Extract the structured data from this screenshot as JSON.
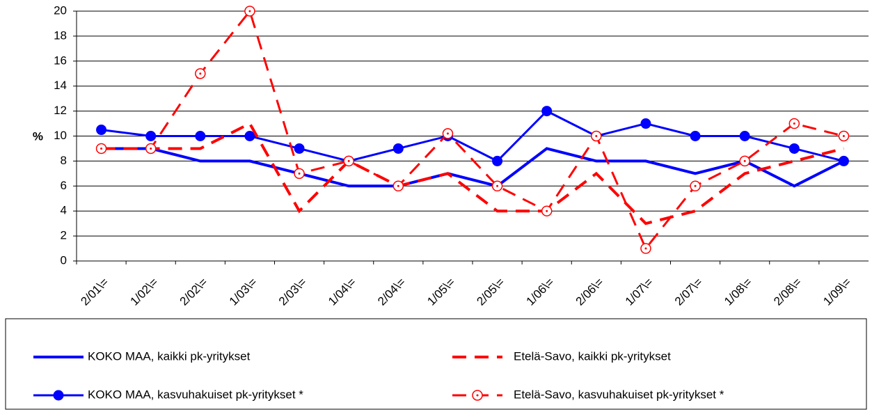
{
  "chart_data": {
    "type": "line",
    "categories": [
      "2/01\\=",
      "1/02\\=",
      "2/02\\=",
      "1/03\\=",
      "2/03\\=",
      "1/04\\=",
      "2/04\\=",
      "1/05\\=",
      "2/05\\=",
      "1/06\\=",
      "2/06\\=",
      "1/07\\=",
      "2/07\\=",
      "1/08\\=",
      "2/08\\=",
      "1/09\\="
    ],
    "y_label": "%",
    "ylim": [
      0,
      20
    ],
    "yticks": [
      0,
      2,
      4,
      6,
      8,
      10,
      12,
      14,
      16,
      18,
      20
    ],
    "grid": true,
    "series": [
      {
        "name": "KOKO MAA, kaikki pk-yritykset",
        "color": "#0000ff",
        "style": "solid",
        "marker": null,
        "values": [
          9,
          9,
          8,
          8,
          7,
          6,
          6,
          7,
          6,
          9,
          8,
          8,
          7,
          8,
          6,
          8
        ]
      },
      {
        "name": "KOKO MAA, kasvuhakuiset pk-yritykset *",
        "color": "#0000ff",
        "style": "solid",
        "marker": "filled",
        "values": [
          10.5,
          10,
          10,
          10,
          9,
          8,
          9,
          10,
          8,
          12,
          10,
          11,
          10,
          10,
          9,
          8
        ]
      },
      {
        "name": "Etelä-Savo, kaikki pk-yritykset",
        "color": "#ff0000",
        "style": "dashed",
        "marker": null,
        "values": [
          9,
          9,
          9,
          11,
          4,
          8,
          6,
          7,
          4,
          4,
          7,
          3,
          4,
          7,
          8,
          9
        ]
      },
      {
        "name": "Etelä-Savo, kasvuhakuiset pk-yritykset *",
        "color": "#ff0000",
        "style": "dashed",
        "marker": "open",
        "values": [
          9,
          9,
          15,
          20,
          7,
          8,
          6,
          10.2,
          6,
          4,
          10,
          1,
          6,
          8,
          11,
          10
        ]
      }
    ]
  }
}
